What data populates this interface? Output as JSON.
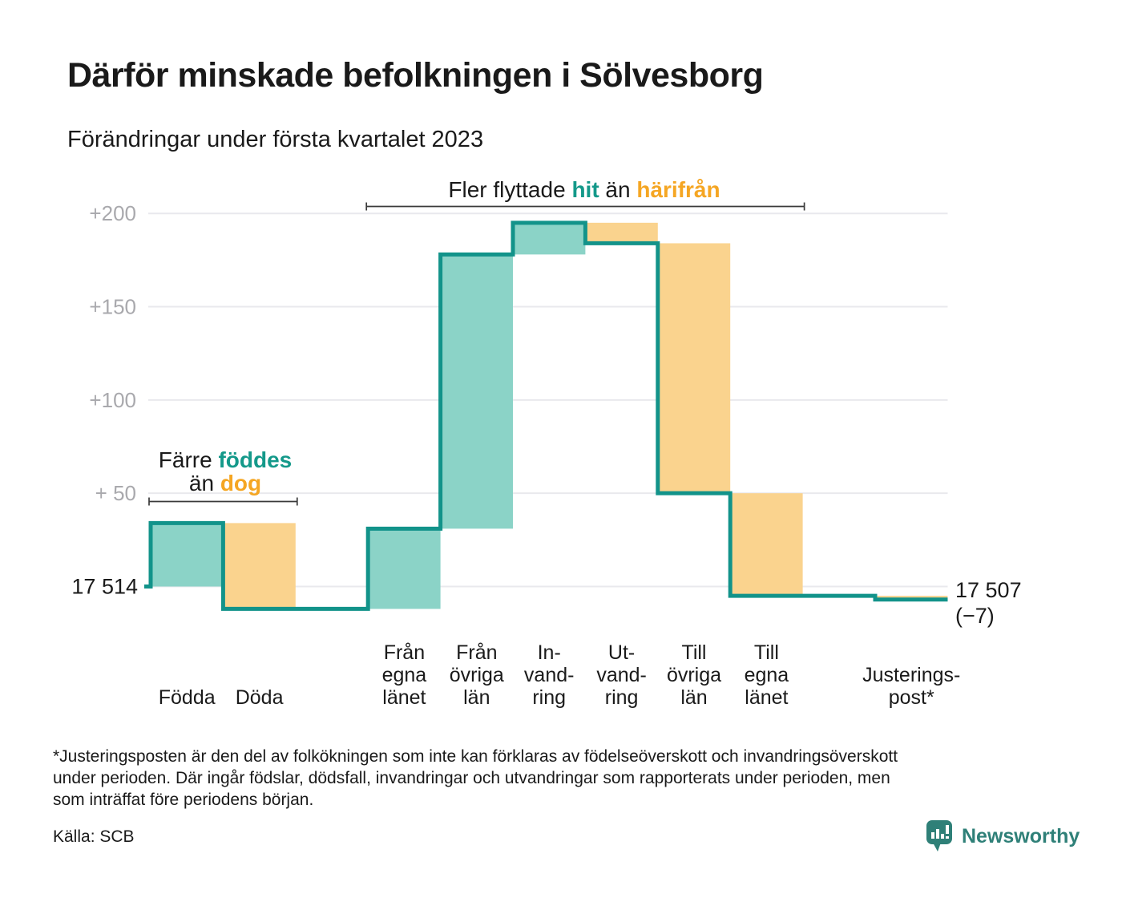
{
  "header": {
    "title": "Därför minskade befolkningen i Sölvesborg",
    "subtitle": "Förändringar under första kvartalet 2023"
  },
  "chart_data": {
    "type": "waterfall",
    "title": "Därför minskade befolkningen i Sölvesborg",
    "subtitle": "Förändringar under första kvartalet 2023",
    "start": {
      "value": 17514,
      "label": "17 514"
    },
    "end": {
      "value": 17507,
      "label": "17 507",
      "delta": -7,
      "delta_label": "(−7)"
    },
    "value_axis": {
      "ticks": [
        {
          "value": 200,
          "label": "+200"
        },
        {
          "value": 150,
          "label": "+150"
        },
        {
          "value": 100,
          "label": "+100"
        },
        {
          "value": 50,
          "label": "+ 50"
        }
      ],
      "range": [
        -15,
        210
      ],
      "grid": true
    },
    "bars": [
      {
        "name": "fodda",
        "label_lines": [
          "Födda"
        ],
        "value": 34,
        "slot": 0
      },
      {
        "name": "doda",
        "label_lines": [
          "Döda"
        ],
        "value": -46,
        "slot": 1
      },
      {
        "name": "fran-egna-lanet",
        "label_lines": [
          "Från",
          "egna",
          "länet"
        ],
        "value": 43,
        "slot": 3
      },
      {
        "name": "fran-ovriga-lan",
        "label_lines": [
          "Från",
          "övriga",
          "län"
        ],
        "value": 147,
        "slot": 4
      },
      {
        "name": "invandring",
        "label_lines": [
          "In-",
          "vand-",
          "ring"
        ],
        "value": 17,
        "slot": 5
      },
      {
        "name": "utvandring",
        "label_lines": [
          "Ut-",
          "vand-",
          "ring"
        ],
        "value": -11,
        "slot": 6
      },
      {
        "name": "till-ovriga-lan",
        "label_lines": [
          "Till",
          "övriga",
          "län"
        ],
        "value": -134,
        "slot": 7
      },
      {
        "name": "till-egna-lanet",
        "label_lines": [
          "Till",
          "egna",
          "länet"
        ],
        "value": -55,
        "slot": 8
      },
      {
        "name": "justeringspost",
        "label_lines": [
          "Justerings-",
          "post*"
        ],
        "value": -2,
        "slot": 10
      }
    ],
    "annotations": [
      {
        "name": "births-deaths",
        "lines": [
          [
            {
              "text": "Färre ",
              "style": "plain"
            },
            {
              "text": "föddes",
              "style": "teal"
            }
          ],
          [
            {
              "text": "än ",
              "style": "plain"
            },
            {
              "text": "dog",
              "style": "orange"
            }
          ]
        ],
        "bracket": {
          "from_slot": 0,
          "to_slot": 2
        }
      },
      {
        "name": "migration",
        "lines": [
          [
            {
              "text": "Fler flyttade ",
              "style": "plain"
            },
            {
              "text": "hit",
              "style": "teal"
            },
            {
              "text": " än ",
              "style": "plain"
            },
            {
              "text": "härifrån",
              "style": "orange"
            }
          ]
        ],
        "bracket": {
          "from_slot": 3,
          "to_slot": 9
        }
      }
    ],
    "annotation_colors": {
      "plain": "#1a1a1a",
      "teal": "#14998a",
      "orange": "#f5a623"
    },
    "colors": {
      "increase_fill": "#8bd3c7",
      "decrease_fill": "#fad38e",
      "line": "#12938a",
      "grid": "#e9e9ed",
      "tick_text": "#a9a9ad",
      "text": "#1a1a1a",
      "bracket": "#3a3a3a"
    }
  },
  "footnote": {
    "lines": [
      "*Justeringsposten är den del av folkökningen som inte kan förklaras av födelseöverskott och invandringsöverskott",
      "under perioden. Där ingår födslar, dödsfall, invandringar och utvandringar som rapporterats under perioden, men",
      "som inträffat före periodens början."
    ]
  },
  "source": "Källa: SCB",
  "logo": {
    "text": "Newsworthy",
    "color": "#2f8078"
  }
}
